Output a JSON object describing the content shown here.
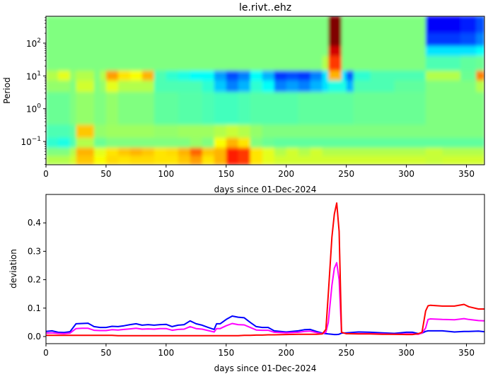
{
  "chart_data": [
    {
      "type": "heatmap",
      "title": "le.rivt..ehz",
      "xlabel": "days since 01-Dec-2024",
      "ylabel": "Period",
      "xlim": [
        0,
        365
      ],
      "ylim": [
        0.0195,
        660
      ],
      "yscale": "log",
      "colormap": "jet",
      "xticks": [
        0,
        50,
        100,
        150,
        200,
        250,
        300,
        350
      ],
      "yticks": [
        {
          "base": "10",
          "exp": "2",
          "value": 100
        },
        {
          "base": "10",
          "exp": "1",
          "value": 10
        },
        {
          "base": "10",
          "exp": "0",
          "value": 1
        },
        {
          "base": "10",
          "exp": "−1",
          "value": 0.1
        }
      ],
      "x_edges": [
        0,
        10,
        20,
        25,
        40,
        45,
        50,
        60,
        70,
        80,
        90,
        100,
        110,
        120,
        130,
        140,
        150,
        160,
        170,
        180,
        190,
        200,
        210,
        220,
        230,
        235,
        246,
        250,
        256,
        270,
        290,
        316,
        330,
        345,
        358,
        365
      ],
      "log10_period_edges": [
        2.82,
        2.3,
        1.9,
        1.6,
        1.15,
        0.85,
        0.5,
        -0.5,
        -0.9,
        -1.2,
        -1.45,
        -1.71
      ],
      "z": [
        [
          0.5,
          0.5,
          0.5,
          0.5,
          0.5,
          0.5,
          0.5,
          0.5,
          0.5,
          0.5,
          0.5,
          0.5,
          0.5,
          0.5,
          0.5,
          0.5,
          0.5,
          0.5,
          0.5,
          0.5,
          0.5,
          0.5,
          0.5,
          0.5,
          0.5,
          1.0,
          0.5,
          0.5,
          0.5,
          0.5,
          0.5,
          0.12,
          0.12,
          0.15,
          0.2
        ],
        [
          0.5,
          0.5,
          0.5,
          0.5,
          0.5,
          0.5,
          0.5,
          0.5,
          0.5,
          0.5,
          0.5,
          0.5,
          0.5,
          0.5,
          0.5,
          0.5,
          0.5,
          0.5,
          0.5,
          0.5,
          0.5,
          0.5,
          0.5,
          0.5,
          0.5,
          1.0,
          0.5,
          0.5,
          0.5,
          0.5,
          0.5,
          0.18,
          0.18,
          0.2,
          0.25
        ],
        [
          0.5,
          0.5,
          0.5,
          0.5,
          0.5,
          0.5,
          0.5,
          0.5,
          0.5,
          0.5,
          0.5,
          0.5,
          0.5,
          0.5,
          0.5,
          0.5,
          0.5,
          0.5,
          0.5,
          0.5,
          0.5,
          0.5,
          0.5,
          0.5,
          0.5,
          0.92,
          0.5,
          0.5,
          0.5,
          0.5,
          0.5,
          0.35,
          0.35,
          0.35,
          0.38
        ],
        [
          0.5,
          0.5,
          0.5,
          0.5,
          0.5,
          0.5,
          0.5,
          0.5,
          0.5,
          0.5,
          0.5,
          0.5,
          0.5,
          0.5,
          0.5,
          0.5,
          0.5,
          0.5,
          0.5,
          0.5,
          0.5,
          0.5,
          0.5,
          0.5,
          0.55,
          0.82,
          0.5,
          0.5,
          0.5,
          0.5,
          0.5,
          0.45,
          0.45,
          0.47,
          0.48
        ],
        [
          0.55,
          0.6,
          0.52,
          0.55,
          0.5,
          0.55,
          0.72,
          0.65,
          0.62,
          0.7,
          0.45,
          0.42,
          0.4,
          0.38,
          0.38,
          0.28,
          0.2,
          0.25,
          0.38,
          0.3,
          0.18,
          0.2,
          0.18,
          0.25,
          0.35,
          0.7,
          0.35,
          0.22,
          0.42,
          0.45,
          0.45,
          0.55,
          0.55,
          0.48,
          0.75
        ],
        [
          0.52,
          0.52,
          0.5,
          0.58,
          0.5,
          0.52,
          0.6,
          0.55,
          0.55,
          0.55,
          0.45,
          0.45,
          0.45,
          0.45,
          0.42,
          0.32,
          0.25,
          0.3,
          0.42,
          0.38,
          0.25,
          0.28,
          0.25,
          0.3,
          0.35,
          0.4,
          0.4,
          0.3,
          0.45,
          0.45,
          0.47,
          0.5,
          0.5,
          0.5,
          0.55
        ],
        [
          0.48,
          0.48,
          0.5,
          0.52,
          0.5,
          0.5,
          0.52,
          0.5,
          0.5,
          0.5,
          0.47,
          0.47,
          0.46,
          0.46,
          0.45,
          0.44,
          0.44,
          0.45,
          0.46,
          0.46,
          0.46,
          0.46,
          0.47,
          0.47,
          0.47,
          0.47,
          0.47,
          0.47,
          0.48,
          0.48,
          0.48,
          0.5,
          0.5,
          0.5,
          0.5
        ],
        [
          0.45,
          0.45,
          0.47,
          0.68,
          0.52,
          0.52,
          0.53,
          0.53,
          0.53,
          0.53,
          0.52,
          0.52,
          0.53,
          0.53,
          0.53,
          0.55,
          0.57,
          0.55,
          0.52,
          0.5,
          0.5,
          0.5,
          0.5,
          0.5,
          0.5,
          0.5,
          0.5,
          0.5,
          0.5,
          0.5,
          0.5,
          0.5,
          0.5,
          0.5,
          0.5
        ],
        [
          0.42,
          0.4,
          0.45,
          0.55,
          0.48,
          0.48,
          0.5,
          0.5,
          0.5,
          0.5,
          0.5,
          0.5,
          0.5,
          0.52,
          0.5,
          0.62,
          0.7,
          0.65,
          0.5,
          0.48,
          0.47,
          0.47,
          0.47,
          0.47,
          0.47,
          0.47,
          0.47,
          0.47,
          0.47,
          0.47,
          0.47,
          0.47,
          0.47,
          0.47,
          0.47
        ],
        [
          0.5,
          0.5,
          0.55,
          0.7,
          0.6,
          0.6,
          0.65,
          0.68,
          0.7,
          0.68,
          0.65,
          0.66,
          0.7,
          0.78,
          0.68,
          0.7,
          0.85,
          0.82,
          0.65,
          0.6,
          0.55,
          0.58,
          0.55,
          0.58,
          0.55,
          0.55,
          0.55,
          0.55,
          0.55,
          0.55,
          0.55,
          0.57,
          0.55,
          0.55,
          0.55
        ],
        [
          0.55,
          0.55,
          0.58,
          0.68,
          0.62,
          0.62,
          0.66,
          0.65,
          0.66,
          0.66,
          0.65,
          0.65,
          0.68,
          0.72,
          0.65,
          0.7,
          0.85,
          0.82,
          0.65,
          0.6,
          0.58,
          0.58,
          0.58,
          0.58,
          0.58,
          0.58,
          0.58,
          0.58,
          0.58,
          0.58,
          0.58,
          0.57,
          0.58,
          0.58,
          0.58
        ]
      ]
    },
    {
      "type": "line",
      "xlabel": "days since 01-Dec-2024",
      "ylabel": "deviation",
      "xlim": [
        0,
        365
      ],
      "ylim": [
        -0.025,
        0.5
      ],
      "xticks": [
        0,
        50,
        100,
        150,
        200,
        250,
        300,
        350
      ],
      "yticks": [
        "0.0",
        "0.1",
        "0.2",
        "0.3",
        "0.4"
      ],
      "x": [
        0,
        5,
        10,
        15,
        20,
        25,
        30,
        35,
        40,
        45,
        50,
        55,
        60,
        65,
        70,
        75,
        80,
        85,
        90,
        95,
        100,
        105,
        110,
        115,
        120,
        125,
        130,
        135,
        140,
        142,
        145,
        150,
        155,
        160,
        165,
        170,
        175,
        180,
        185,
        190,
        200,
        210,
        215,
        220,
        225,
        230,
        233,
        235,
        238,
        240,
        242,
        244,
        246,
        250,
        260,
        270,
        280,
        290,
        300,
        305,
        310,
        313,
        316,
        318,
        320,
        330,
        340,
        348,
        352,
        360,
        365
      ],
      "series": [
        {
          "color": "#0000ff",
          "values": [
            0.018,
            0.02,
            0.015,
            0.014,
            0.017,
            0.045,
            0.046,
            0.047,
            0.035,
            0.032,
            0.032,
            0.036,
            0.035,
            0.038,
            0.042,
            0.045,
            0.04,
            0.042,
            0.04,
            0.042,
            0.043,
            0.035,
            0.04,
            0.042,
            0.055,
            0.045,
            0.04,
            0.032,
            0.025,
            0.045,
            0.045,
            0.06,
            0.072,
            0.068,
            0.066,
            0.05,
            0.035,
            0.032,
            0.032,
            0.02,
            0.016,
            0.02,
            0.024,
            0.025,
            0.018,
            0.012,
            0.01,
            0.009,
            0.008,
            0.007,
            0.007,
            0.008,
            0.012,
            0.013,
            0.016,
            0.015,
            0.013,
            0.011,
            0.015,
            0.015,
            0.01,
            0.012,
            0.018,
            0.02,
            0.02,
            0.02,
            0.016,
            0.018,
            0.018,
            0.019,
            0.017
          ]
        },
        {
          "color": "#ff00ff",
          "values": [
            0.012,
            0.013,
            0.011,
            0.01,
            0.012,
            0.028,
            0.029,
            0.029,
            0.022,
            0.021,
            0.021,
            0.024,
            0.023,
            0.025,
            0.027,
            0.029,
            0.026,
            0.027,
            0.026,
            0.028,
            0.028,
            0.022,
            0.025,
            0.026,
            0.035,
            0.028,
            0.026,
            0.021,
            0.016,
            0.028,
            0.028,
            0.038,
            0.046,
            0.042,
            0.041,
            0.032,
            0.023,
            0.022,
            0.022,
            0.015,
            0.013,
            0.015,
            0.018,
            0.019,
            0.014,
            0.01,
            0.015,
            0.05,
            0.18,
            0.24,
            0.26,
            0.2,
            0.015,
            0.01,
            0.01,
            0.01,
            0.009,
            0.008,
            0.009,
            0.009,
            0.008,
            0.012,
            0.03,
            0.06,
            0.062,
            0.06,
            0.059,
            0.063,
            0.06,
            0.056,
            0.055
          ]
        },
        {
          "color": "#ff0000",
          "values": [
            0.004,
            0.004,
            0.004,
            0.004,
            0.004,
            0.004,
            0.004,
            0.004,
            0.004,
            0.004,
            0.004,
            0.004,
            0.003,
            0.003,
            0.003,
            0.003,
            0.003,
            0.003,
            0.003,
            0.003,
            0.003,
            0.003,
            0.003,
            0.003,
            0.003,
            0.003,
            0.003,
            0.003,
            0.003,
            0.003,
            0.003,
            0.003,
            0.003,
            0.003,
            0.004,
            0.004,
            0.005,
            0.005,
            0.006,
            0.006,
            0.007,
            0.008,
            0.008,
            0.008,
            0.008,
            0.009,
            0.025,
            0.15,
            0.35,
            0.43,
            0.47,
            0.37,
            0.015,
            0.01,
            0.009,
            0.009,
            0.008,
            0.008,
            0.007,
            0.007,
            0.01,
            0.015,
            0.09,
            0.108,
            0.11,
            0.107,
            0.107,
            0.113,
            0.105,
            0.097,
            0.097
          ]
        }
      ]
    }
  ]
}
